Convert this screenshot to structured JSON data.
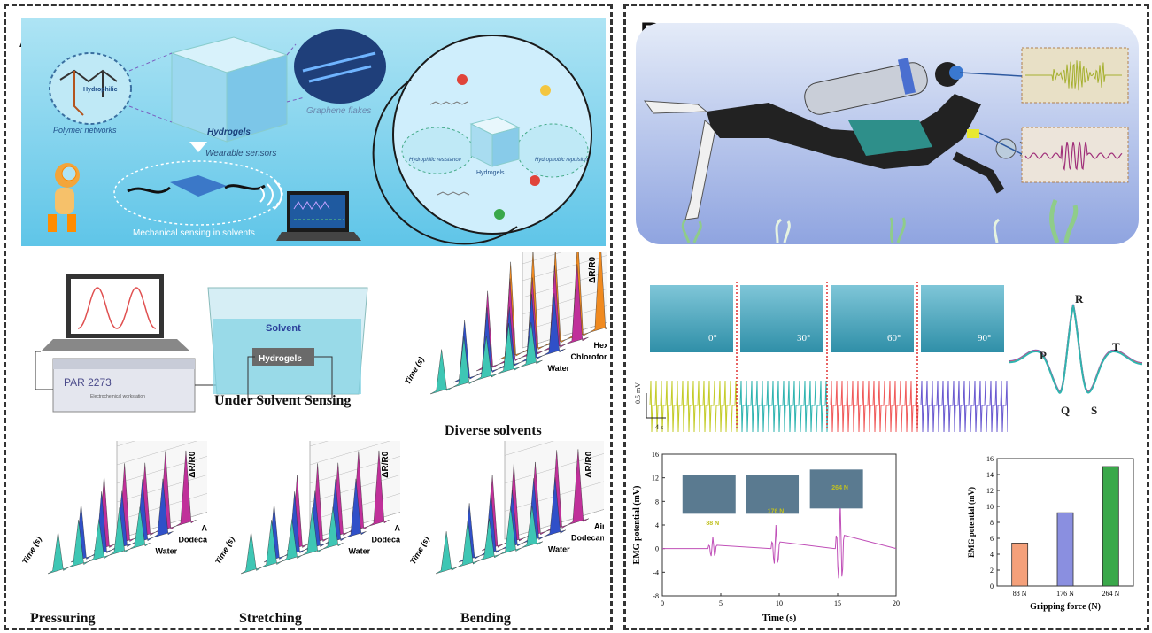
{
  "panel_a": {
    "label": "A",
    "schematic": {
      "hydrophobic": "Hydrophobic",
      "hydrophilic": "Hydrophilic",
      "oh": "OH",
      "polymer_networks": "Polymer networks",
      "hydrogels": "Hydrogels",
      "graphene_flakes": "Graphene flakes",
      "wearable_sensors": "Wearable sensors",
      "mechanical_sensing": "Mechanical sensing in solvents",
      "hydrophilic_resistance": "Hydrophilic resistance",
      "hydrogels_inner": "Hydrogels",
      "hydrophobic_repulsion": "Hydrophobic repulsion"
    },
    "setup": {
      "solvent": "Solvent",
      "hydrogels": "Hydrogels",
      "device": "PAR 2273",
      "device_sub": "Electrochemical workstation",
      "caption": "Under Solvent Sensing"
    },
    "charts": {
      "diverse": {
        "caption": "Diverse solvents",
        "zlabel": "ΔR/R0",
        "ticks": [
          "0",
          "20",
          "40",
          "60",
          "80",
          "100",
          "120",
          "140"
        ],
        "series": [
          "Water",
          "Chlorofom",
          "Hexane",
          "Dodecane"
        ],
        "time_label": "Time (s)",
        "time_ticks": [
          "0",
          "2",
          "4",
          "6",
          "8"
        ]
      },
      "pressuring": {
        "caption": "Pressuring",
        "zlabel": "ΔR/R0",
        "ticks": [
          "0",
          "5",
          "10",
          "15",
          "20",
          "25",
          "30"
        ],
        "series": [
          "Water",
          "Dodecane",
          "Air"
        ],
        "time_label": "Time (s)",
        "time_ticks": [
          "0",
          "2",
          "4",
          "6",
          "8"
        ]
      },
      "stretching": {
        "caption": "Stretching",
        "zlabel": "ΔR/R0",
        "ticks": [
          "0",
          "20",
          "40",
          "60",
          "80",
          "100",
          "120"
        ],
        "series": [
          "Water",
          "Dodecane",
          "Air"
        ],
        "time_label": "Time (s)",
        "time_ticks": [
          "0",
          "2",
          "4",
          "6",
          "8"
        ]
      },
      "bending": {
        "caption": "Bending",
        "zlabel": "ΔR/R0",
        "ticks": [
          "0",
          "10",
          "20",
          "30",
          "40"
        ],
        "series": [
          "Water",
          "Dodecane",
          "Air"
        ],
        "time_label": "Time (s)",
        "time_ticks": [
          "0",
          "2",
          "4",
          "6",
          "8"
        ]
      }
    }
  },
  "panel_b": {
    "label": "B",
    "angles": [
      "0°",
      "30°",
      "60°",
      "90°"
    ],
    "scale_v": "0.5 mV",
    "scale_t": "4 s",
    "ecg": {
      "p": "P",
      "q": "Q",
      "r": "R",
      "s": "S",
      "t": "T"
    },
    "emg_chart": {
      "ylabel": "EMG potential (mV)",
      "xlabel": "Time (s)",
      "yticks": [
        "-8",
        "-4",
        "0",
        "4",
        "8",
        "12",
        "16"
      ],
      "xticks": [
        "0",
        "5",
        "10",
        "15",
        "20"
      ],
      "forces": [
        "88 N",
        "176 N",
        "264 N"
      ]
    },
    "bar_chart": {
      "ylabel": "EMG potential (mV)",
      "xlabel": "Gripping force (N)",
      "yticks": [
        "0",
        "2",
        "4",
        "6",
        "8",
        "10",
        "12",
        "14",
        "16"
      ],
      "categories": [
        "88 N",
        "176 N",
        "264 N"
      ]
    }
  },
  "chart_data": [
    {
      "type": "bar",
      "categories": [
        "88 N",
        "176 N",
        "264 N"
      ],
      "values": [
        5.4,
        9.2,
        15.0
      ],
      "xlabel": "Gripping force (N)",
      "ylabel": "EMG potential (mV)",
      "ylim": [
        0,
        16
      ],
      "colors": [
        "#f4a07a",
        "#8a8fe0",
        "#3aa84a"
      ]
    },
    {
      "type": "line",
      "xlabel": "Time (s)",
      "ylabel": "EMG potential (mV)",
      "xlim": [
        0,
        20
      ],
      "ylim": [
        -8,
        16
      ],
      "bursts": [
        {
          "x": 4.3,
          "amplitude": 2,
          "label": "88 N"
        },
        {
          "x": 9.7,
          "amplitude": 4,
          "label": "176 N"
        },
        {
          "x": 15.2,
          "amplitude": 8,
          "label": "264 N"
        }
      ],
      "color": "#c050b8"
    }
  ]
}
